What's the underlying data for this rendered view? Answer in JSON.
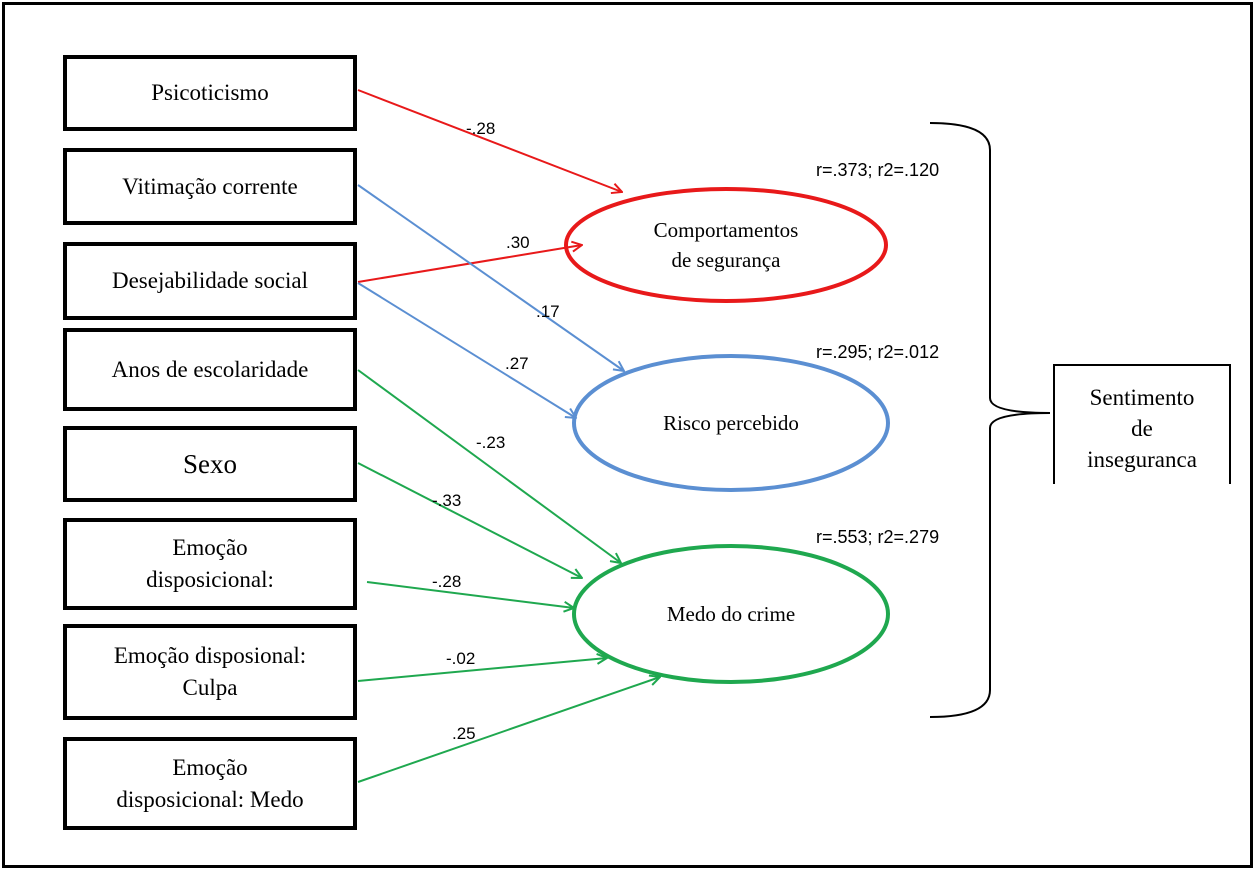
{
  "colors": {
    "safety": "#e8191a",
    "risk": "#5b8fd2",
    "fear": "#1fa84f",
    "ink": "#000000"
  },
  "predictors": [
    {
      "id": "psicoticismo",
      "label": "Psicoticismo"
    },
    {
      "id": "vitimacao",
      "label": "Vitimação corrente"
    },
    {
      "id": "desejabilidade",
      "label": "Desejabilidade social"
    },
    {
      "id": "escolaridade",
      "label": "Anos de escolaridade"
    },
    {
      "id": "sexo",
      "label": "Sexo"
    },
    {
      "id": "emo-disposicional",
      "label": "Emoção\ndisposicional:"
    },
    {
      "id": "emo-culpa",
      "label": "Emoção disposional:\nCulpa"
    },
    {
      "id": "emo-medo",
      "label": "Emoção\ndisposicional: Medo"
    }
  ],
  "outcomes": [
    {
      "id": "comportamentos",
      "label": "Comportamentos\nde segurança",
      "stats": "r=.373; r2=.120"
    },
    {
      "id": "risco",
      "label": "Risco percebido",
      "stats": "r=.295; r2=.012"
    },
    {
      "id": "medo",
      "label": "Medo do crime",
      "stats": "r=.553; r2=.279"
    }
  ],
  "construct": {
    "label": "Sentimento\nde\ninseguranca"
  },
  "paths": [
    {
      "from": "psicoticismo",
      "to": "comportamentos",
      "coef": "-.28"
    },
    {
      "from": "desejabilidade",
      "to": "comportamentos",
      "coef": ".30"
    },
    {
      "from": "vitimacao",
      "to": "risco",
      "coef": ".17"
    },
    {
      "from": "desejabilidade",
      "to": "risco",
      "coef": ".27"
    },
    {
      "from": "escolaridade",
      "to": "medo",
      "coef": "-.23"
    },
    {
      "from": "sexo",
      "to": "medo",
      "coef": "-.33"
    },
    {
      "from": "emo-disposicional",
      "to": "medo",
      "coef": "-.28"
    },
    {
      "from": "emo-culpa",
      "to": "medo",
      "coef": "-.02"
    },
    {
      "from": "emo-medo",
      "to": "medo",
      "coef": ".25"
    }
  ]
}
